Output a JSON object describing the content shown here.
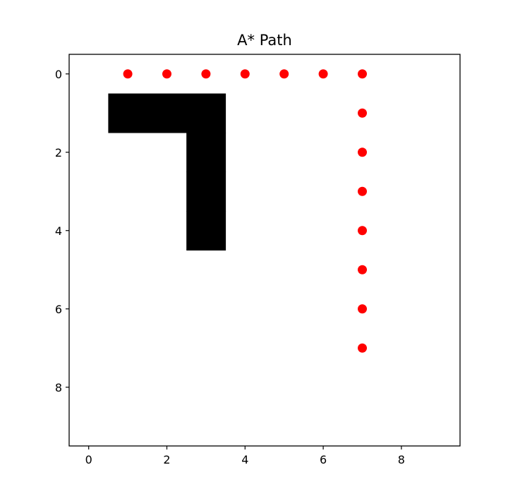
{
  "chart_data": {
    "type": "scatter",
    "title": "A* Path",
    "xlabel": "",
    "ylabel": "",
    "xlim": [
      -0.5,
      9.5
    ],
    "ylim": [
      9.5,
      -0.5
    ],
    "y_inverted": true,
    "x_ticks": [
      0,
      2,
      4,
      6,
      8
    ],
    "y_ticks": [
      0,
      2,
      4,
      6,
      8
    ],
    "grid": false,
    "obstacles": {
      "color": "#000000",
      "cells": [
        [
          1,
          1
        ],
        [
          2,
          1
        ],
        [
          3,
          1
        ],
        [
          3,
          2
        ],
        [
          3,
          3
        ],
        [
          3,
          4
        ]
      ]
    },
    "series": [
      {
        "color": "#ff0000",
        "marker": "circle",
        "points": [
          {
            "x": 1,
            "y": 0
          },
          {
            "x": 2,
            "y": 0
          },
          {
            "x": 3,
            "y": 0
          },
          {
            "x": 4,
            "y": 0
          },
          {
            "x": 5,
            "y": 0
          },
          {
            "x": 6,
            "y": 0
          },
          {
            "x": 7,
            "y": 0
          },
          {
            "x": 7,
            "y": 1
          },
          {
            "x": 7,
            "y": 2
          },
          {
            "x": 7,
            "y": 3
          },
          {
            "x": 7,
            "y": 4
          },
          {
            "x": 7,
            "y": 5
          },
          {
            "x": 7,
            "y": 6
          },
          {
            "x": 7,
            "y": 7
          }
        ]
      }
    ]
  }
}
